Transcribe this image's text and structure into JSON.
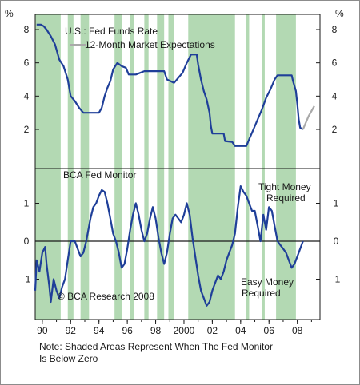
{
  "chart_data": [
    {
      "type": "line",
      "panel": "top",
      "unit_label": "%",
      "series": [
        {
          "name": "U.S.: Fed Funds Rate",
          "color": "#1f3f99",
          "points": [
            [
              1989.6,
              8.3
            ],
            [
              1989.9,
              8.3
            ],
            [
              1990.1,
              8.2
            ],
            [
              1990.3,
              8.0
            ],
            [
              1990.6,
              7.6
            ],
            [
              1990.9,
              7.1
            ],
            [
              1991.2,
              6.2
            ],
            [
              1991.5,
              5.8
            ],
            [
              1991.8,
              5.0
            ],
            [
              1992.0,
              4.0
            ],
            [
              1992.3,
              3.7
            ],
            [
              1992.6,
              3.3
            ],
            [
              1992.9,
              3.0
            ],
            [
              1993.5,
              3.0
            ],
            [
              1994.0,
              3.0
            ],
            [
              1994.2,
              3.3
            ],
            [
              1994.4,
              4.0
            ],
            [
              1994.6,
              4.5
            ],
            [
              1994.8,
              4.9
            ],
            [
              1995.0,
              5.6
            ],
            [
              1995.3,
              6.0
            ],
            [
              1995.6,
              5.8
            ],
            [
              1995.9,
              5.7
            ],
            [
              1996.1,
              5.3
            ],
            [
              1996.6,
              5.3
            ],
            [
              1997.2,
              5.5
            ],
            [
              1997.8,
              5.5
            ],
            [
              1998.2,
              5.5
            ],
            [
              1998.6,
              5.5
            ],
            [
              1998.8,
              5.0
            ],
            [
              1999.3,
              4.8
            ],
            [
              1999.6,
              5.1
            ],
            [
              1999.9,
              5.4
            ],
            [
              2000.2,
              6.0
            ],
            [
              2000.5,
              6.5
            ],
            [
              2000.9,
              6.5
            ],
            [
              2001.0,
              5.9
            ],
            [
              2001.2,
              5.0
            ],
            [
              2001.4,
              4.3
            ],
            [
              2001.6,
              3.8
            ],
            [
              2001.8,
              3.0
            ],
            [
              2001.9,
              2.2
            ],
            [
              2002.0,
              1.75
            ],
            [
              2002.8,
              1.75
            ],
            [
              2002.9,
              1.3
            ],
            [
              2003.4,
              1.25
            ],
            [
              2003.6,
              1.0
            ],
            [
              2004.4,
              1.0
            ],
            [
              2004.6,
              1.4
            ],
            [
              2004.9,
              2.0
            ],
            [
              2005.2,
              2.6
            ],
            [
              2005.5,
              3.2
            ],
            [
              2005.8,
              3.9
            ],
            [
              2006.1,
              4.4
            ],
            [
              2006.4,
              5.0
            ],
            [
              2006.6,
              5.25
            ],
            [
              2007.6,
              5.25
            ],
            [
              2007.7,
              4.9
            ],
            [
              2007.9,
              4.3
            ],
            [
              2008.0,
              3.5
            ],
            [
              2008.1,
              2.6
            ],
            [
              2008.2,
              2.1
            ],
            [
              2008.4,
              2.0
            ]
          ]
        },
        {
          "name": "12-Month Market Expectations",
          "color": "#a9a9a9",
          "points": [
            [
              2008.4,
              2.0
            ],
            [
              2008.8,
              2.8
            ],
            [
              2009.2,
              3.4
            ]
          ]
        }
      ],
      "xlim": [
        1989.5,
        2009.6
      ],
      "ylim": [
        0,
        9
      ],
      "yticks": [
        "8",
        "6",
        "4",
        "2"
      ],
      "ytick_values": [
        8,
        6,
        4,
        2
      ]
    },
    {
      "type": "line",
      "panel": "bottom",
      "series": [
        {
          "name": "BCA Fed Monitor",
          "color": "#1f3f99",
          "points": [
            [
              1989.5,
              -1.3
            ],
            [
              1989.6,
              -0.5
            ],
            [
              1989.8,
              -0.8
            ],
            [
              1990.0,
              -0.3
            ],
            [
              1990.2,
              -0.15
            ],
            [
              1990.3,
              -0.6
            ],
            [
              1990.5,
              -1.2
            ],
            [
              1990.6,
              -1.6
            ],
            [
              1990.8,
              -1.0
            ],
            [
              1991.0,
              -1.3
            ],
            [
              1991.2,
              -1.5
            ],
            [
              1991.4,
              -1.2
            ],
            [
              1991.6,
              -1.0
            ],
            [
              1991.8,
              -0.5
            ],
            [
              1992.0,
              0.0
            ],
            [
              1992.3,
              0.0
            ],
            [
              1992.5,
              -0.2
            ],
            [
              1992.7,
              -0.4
            ],
            [
              1992.9,
              -0.3
            ],
            [
              1993.1,
              0.0
            ],
            [
              1993.4,
              0.6
            ],
            [
              1993.6,
              0.9
            ],
            [
              1993.8,
              1.0
            ],
            [
              1994.0,
              1.2
            ],
            [
              1994.2,
              1.35
            ],
            [
              1994.4,
              1.3
            ],
            [
              1994.6,
              1.0
            ],
            [
              1994.8,
              0.6
            ],
            [
              1995.0,
              0.2
            ],
            [
              1995.2,
              0.0
            ],
            [
              1995.4,
              -0.3
            ],
            [
              1995.6,
              -0.7
            ],
            [
              1995.8,
              -0.6
            ],
            [
              1996.0,
              -0.2
            ],
            [
              1996.2,
              0.3
            ],
            [
              1996.4,
              0.7
            ],
            [
              1996.6,
              1.0
            ],
            [
              1996.8,
              0.7
            ],
            [
              1997.0,
              0.3
            ],
            [
              1997.2,
              0.0
            ],
            [
              1997.4,
              0.2
            ],
            [
              1997.6,
              0.6
            ],
            [
              1997.8,
              0.9
            ],
            [
              1998.0,
              0.6
            ],
            [
              1998.2,
              0.1
            ],
            [
              1998.4,
              -0.3
            ],
            [
              1998.6,
              -0.6
            ],
            [
              1998.8,
              -0.3
            ],
            [
              1999.0,
              0.2
            ],
            [
              1999.2,
              0.6
            ],
            [
              1999.4,
              0.7
            ],
            [
              1999.6,
              0.6
            ],
            [
              1999.8,
              0.5
            ],
            [
              2000.0,
              0.7
            ],
            [
              2000.2,
              1.0
            ],
            [
              2000.4,
              0.7
            ],
            [
              2000.6,
              0.1
            ],
            [
              2000.8,
              -0.4
            ],
            [
              2001.0,
              -0.9
            ],
            [
              2001.2,
              -1.3
            ],
            [
              2001.4,
              -1.5
            ],
            [
              2001.6,
              -1.7
            ],
            [
              2001.8,
              -1.6
            ],
            [
              2002.0,
              -1.3
            ],
            [
              2002.2,
              -1.1
            ],
            [
              2002.4,
              -0.9
            ],
            [
              2002.6,
              -1.0
            ],
            [
              2002.8,
              -0.8
            ],
            [
              2003.0,
              -0.5
            ],
            [
              2003.2,
              -0.3
            ],
            [
              2003.4,
              -0.1
            ],
            [
              2003.6,
              0.2
            ],
            [
              2003.8,
              0.9
            ],
            [
              2004.0,
              1.45
            ],
            [
              2004.2,
              1.3
            ],
            [
              2004.4,
              1.2
            ],
            [
              2004.6,
              1.0
            ],
            [
              2004.8,
              0.8
            ],
            [
              2005.0,
              0.8
            ],
            [
              2005.2,
              0.4
            ],
            [
              2005.4,
              0.0
            ],
            [
              2005.6,
              0.7
            ],
            [
              2005.8,
              0.3
            ],
            [
              2006.0,
              0.9
            ],
            [
              2006.2,
              0.8
            ],
            [
              2006.4,
              0.4
            ],
            [
              2006.6,
              0.0
            ],
            [
              2006.8,
              -0.1
            ],
            [
              2007.0,
              -0.2
            ],
            [
              2007.2,
              -0.3
            ],
            [
              2007.4,
              -0.5
            ],
            [
              2007.6,
              -0.7
            ],
            [
              2007.8,
              -0.6
            ],
            [
              2008.0,
              -0.4
            ],
            [
              2008.2,
              -0.2
            ],
            [
              2008.4,
              0.0
            ]
          ]
        }
      ],
      "xlim": [
        1989.5,
        2009.6
      ],
      "ylim": [
        -1.8,
        1.8
      ],
      "yticks": [
        "1",
        "0",
        "-1"
      ],
      "ytick_values": [
        1,
        0,
        -1
      ],
      "zero_line": true
    }
  ],
  "shaded_periods": [
    [
      1989.5,
      1991.3
    ],
    [
      1991.8,
      1992.2
    ],
    [
      1992.7,
      1993.3
    ],
    [
      1995.1,
      1995.6
    ],
    [
      1996.2,
      1996.5
    ],
    [
      1997.2,
      1997.5
    ],
    [
      1998.1,
      1998.6
    ],
    [
      1998.9,
      1999.3
    ],
    [
      2000.3,
      2003.6
    ],
    [
      2004.4,
      2004.6
    ],
    [
      2005.5,
      2005.7
    ],
    [
      2006.5,
      2007.9
    ]
  ],
  "shade_color": "#b3d9b3",
  "x_axis": {
    "tick_values": [
      1990,
      1992,
      1994,
      1996,
      1998,
      2000,
      2002,
      2004,
      2006,
      2008
    ],
    "tick_labels": [
      "90",
      "92",
      "94",
      "96",
      "98",
      "2000",
      "02",
      "04",
      "06",
      "08"
    ]
  },
  "legend": {
    "fed_funds": "U.S.: Fed Funds Rate",
    "expectations": "12-Month Market Expectations"
  },
  "annotations": {
    "monitor_title": "BCA Fed Monitor",
    "tight_line1": "Tight Money",
    "tight_line2": "Required",
    "easy_line1": "Easy Money",
    "easy_line2": "Required",
    "copyright": "© BCA Research 2008"
  },
  "note": {
    "line1": "Note:  Shaded Areas Represent When The Fed Monitor",
    "line2": "Is Below Zero"
  },
  "unit_symbol": "%"
}
